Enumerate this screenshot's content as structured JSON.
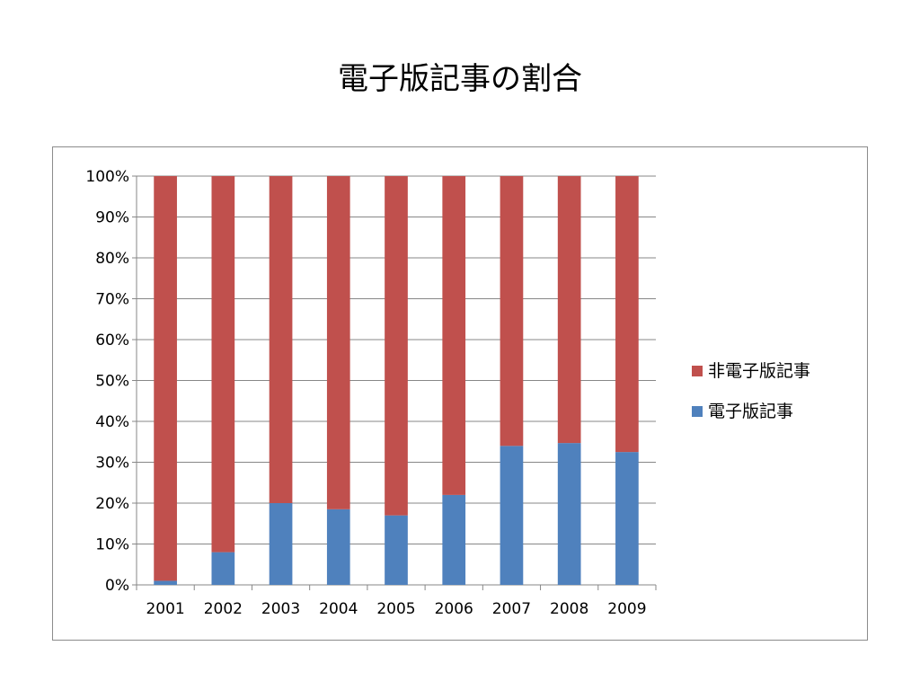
{
  "title": "電子版記事の割合",
  "chart_data": {
    "type": "bar",
    "stacked": "percent",
    "categories": [
      "2001",
      "2002",
      "2003",
      "2004",
      "2005",
      "2006",
      "2007",
      "2008",
      "2009"
    ],
    "series": [
      {
        "name": "電子版記事",
        "color": "#4f81bd",
        "values": [
          1,
          8,
          20,
          18.5,
          17,
          22,
          34,
          34.7,
          32.5
        ]
      },
      {
        "name": "非電子版記事",
        "color": "#c0504d",
        "values": [
          99,
          92,
          80,
          81.5,
          83,
          78,
          66,
          65.3,
          67.5
        ]
      }
    ],
    "yticks": [
      "0%",
      "10%",
      "20%",
      "30%",
      "40%",
      "50%",
      "60%",
      "70%",
      "80%",
      "90%",
      "100%"
    ],
    "ylim": [
      0,
      100
    ],
    "grid": true,
    "legend": {
      "placement": "right",
      "items": [
        "非電子版記事",
        "電子版記事"
      ]
    }
  }
}
